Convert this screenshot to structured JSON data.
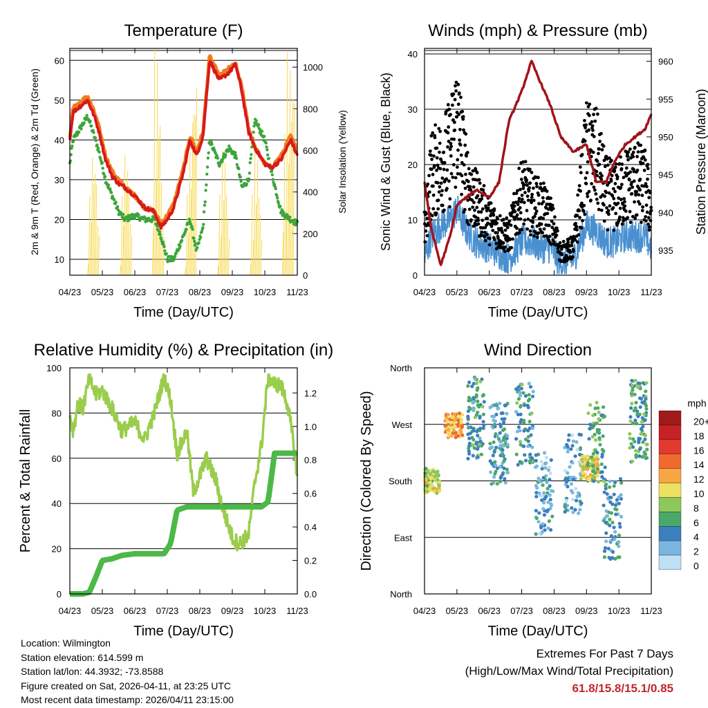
{
  "x_ticks": [
    "04/23",
    "05/23",
    "06/23",
    "07/23",
    "08/23",
    "09/23",
    "10/23",
    "11/23"
  ],
  "colors": {
    "red": "#d7191c",
    "orange": "#f07c1c",
    "green": "#3da53a",
    "yellow": "#f7d84a",
    "black": "#000000",
    "blue": "#4a90d0",
    "maroon": "#a0141a",
    "rh_green": "#9acd4c",
    "precip_green": "#4cb848"
  },
  "chart_data": [
    {
      "id": "temperature",
      "type": "line",
      "title": "Temperature (F)",
      "xlabel": "Time (Day/UTC)",
      "ylabel": "2m & 9m T (Red, Orange) & 2m Td (Green)",
      "y2label": "Solar Insolation (Yellow)",
      "ylim": [
        6,
        63
      ],
      "y2lim": [
        0,
        1090
      ],
      "y_ticks": [
        10,
        20,
        30,
        40,
        50,
        60
      ],
      "y2_ticks": [
        0,
        200,
        400,
        600,
        800,
        1000
      ],
      "x": [
        0,
        0.1,
        0.25,
        0.4,
        0.55,
        0.75,
        0.9,
        1.1,
        1.3,
        1.5,
        1.7,
        2,
        2.3,
        2.6,
        2.8,
        3,
        3.2,
        3.5,
        3.7,
        3.9,
        4.1,
        4.3,
        4.6,
        4.9,
        5.1,
        5.3,
        5.5,
        5.7,
        6,
        6.2,
        6.5,
        6.8,
        7
      ],
      "series": [
        {
          "name": "2m T",
          "values": [
            40,
            47,
            48,
            49,
            50,
            46,
            42,
            35,
            31,
            29,
            28,
            26,
            23,
            22,
            18,
            20,
            23,
            32,
            40,
            36,
            41,
            60,
            55,
            57,
            59,
            52,
            42,
            38,
            34,
            33,
            35,
            40,
            36
          ]
        },
        {
          "name": "9m T",
          "values": [
            41,
            48,
            49,
            50,
            51,
            47,
            43,
            36,
            32,
            30,
            28,
            26,
            23,
            22,
            19,
            21,
            24,
            33,
            41,
            37,
            42,
            61,
            56,
            58,
            59,
            53,
            43,
            38,
            34,
            33,
            36,
            41,
            37
          ]
        },
        {
          "name": "2m Td",
          "values": [
            34,
            40,
            42,
            44,
            46,
            41,
            37,
            30,
            26,
            22,
            20,
            21,
            20,
            20,
            16,
            10,
            10,
            16,
            20,
            12,
            18,
            40,
            34,
            38,
            36,
            28,
            30,
            45,
            40,
            32,
            22,
            20,
            19
          ]
        },
        {
          "name": "Solar Insolation",
          "values": [
            0,
            0,
            210,
            0,
            0,
            0,
            0,
            0,
            960,
            0,
            0,
            0,
            0,
            820,
            0,
            0,
            0,
            0,
            0,
            820,
            0,
            0,
            0,
            0,
            0,
            880,
            0,
            0,
            0,
            1000,
            0,
            1050,
            0
          ]
        }
      ]
    },
    {
      "id": "winds",
      "type": "scatter",
      "title": "Winds (mph) & Pressure (mb)",
      "xlabel": "Time (Day/UTC)",
      "ylabel": "Sonic Wind & Gust (Blue, Black)",
      "y2label": "Station Pressure (Maroon)",
      "ylim": [
        0,
        41
      ],
      "y2lim": [
        931.7,
        961.7
      ],
      "y_ticks": [
        0,
        10,
        20,
        30,
        40
      ],
      "y2_ticks": [
        935,
        940,
        945,
        950,
        955,
        960
      ],
      "x": [
        0,
        0.2,
        0.5,
        0.8,
        1,
        1.3,
        1.6,
        2,
        2.3,
        2.6,
        3,
        3.3,
        3.6,
        3.9,
        4.2,
        4.6,
        5,
        5.3,
        5.6,
        5.9,
        6.2,
        6.5,
        6.8,
        7
      ],
      "series": [
        {
          "name": "Gust",
          "values": [
            8,
            18,
            20,
            22,
            28,
            17,
            13,
            10,
            8,
            7,
            15,
            13,
            12,
            10,
            4,
            5,
            22,
            21,
            15,
            14,
            16,
            17,
            16,
            12
          ]
        },
        {
          "name": "Sonic Wind",
          "values": [
            3,
            7,
            9,
            10,
            12,
            8,
            6,
            5,
            4,
            3,
            6,
            6,
            5,
            5,
            2,
            3,
            9,
            8,
            6,
            6,
            7,
            7,
            7,
            5
          ]
        },
        {
          "name": "Station Pressure",
          "values": [
            944,
            938,
            933,
            937,
            941,
            942,
            943,
            942,
            944,
            952,
            956,
            960,
            957,
            954,
            950,
            948,
            949,
            944,
            944,
            947,
            949,
            950,
            951,
            953
          ]
        }
      ]
    },
    {
      "id": "humidity",
      "type": "line",
      "title": "Relative Humidity (%) & Precipitation (in)",
      "xlabel": "Time (Day/UTC)",
      "ylabel": "Percent & Total Rainfall",
      "ylim": [
        0,
        100
      ],
      "y2lim": [
        0,
        1.35
      ],
      "y_ticks": [
        0,
        20,
        40,
        60,
        80,
        100
      ],
      "y2_ticks": [
        "0.0",
        "0.2",
        "0.4",
        "0.6",
        "0.8",
        "1.0",
        "1.2"
      ],
      "x": [
        0,
        0.1,
        0.25,
        0.4,
        0.6,
        0.8,
        1,
        1.3,
        1.6,
        2,
        2.3,
        2.6,
        2.9,
        3.1,
        3.3,
        3.6,
        3.8,
        4,
        4.2,
        4.5,
        4.7,
        5,
        5.2,
        5.5,
        5.7,
        5.9,
        6.1,
        6.3,
        6.5,
        6.7,
        6.9,
        7
      ],
      "series": [
        {
          "name": "Relative Humidity",
          "values": [
            80,
            72,
            84,
            82,
            95,
            88,
            90,
            82,
            72,
            76,
            68,
            80,
            96,
            86,
            62,
            72,
            45,
            52,
            60,
            50,
            38,
            25,
            22,
            26,
            50,
            66,
            96,
            93,
            92,
            84,
            65,
            52
          ]
        },
        {
          "name": "Total Precipitation",
          "values": [
            0,
            0,
            0,
            0,
            0.01,
            0.1,
            0.2,
            0.21,
            0.23,
            0.24,
            0.24,
            0.24,
            0.24,
            0.3,
            0.5,
            0.52,
            0.52,
            0.52,
            0.52,
            0.52,
            0.52,
            0.52,
            0.52,
            0.52,
            0.52,
            0.52,
            0.55,
            0.84,
            0.84,
            0.84,
            0.84,
            0.84
          ]
        }
      ]
    },
    {
      "id": "direction",
      "type": "scatter",
      "title": "Wind Direction",
      "xlabel": "Time (Day/UTC)",
      "ylabel": "Direction (Colored By Speed)",
      "y_ticks": [
        "North",
        "East",
        "South",
        "West",
        "North"
      ],
      "y_degrees": [
        0,
        90,
        180,
        270,
        360
      ],
      "legend_title": "mph",
      "legend_labels": [
        "20+",
        "18",
        "16",
        "14",
        "12",
        "10",
        "8",
        "6",
        "4",
        "2",
        "0"
      ],
      "legend_colors": [
        "#a01a1a",
        "#c62124",
        "#e23a2c",
        "#f06a30",
        "#f8a544",
        "#ede060",
        "#8ec85a",
        "#4ca868",
        "#3c7fbd",
        "#7ab6e0",
        "#bfe0f4"
      ],
      "clusters": [
        {
          "x": 0.2,
          "dir": 180,
          "speed": 9
        },
        {
          "x": 0.9,
          "dir": 268,
          "speed": 12
        },
        {
          "x": 1.6,
          "dir": 280,
          "speed": 5
        },
        {
          "x": 2.3,
          "dir": 240,
          "speed": 4
        },
        {
          "x": 3.1,
          "dir": 270,
          "speed": 5
        },
        {
          "x": 3.7,
          "dir": 160,
          "speed": 3
        },
        {
          "x": 4.6,
          "dir": 190,
          "speed": 3
        },
        {
          "x": 5.1,
          "dir": 200,
          "speed": 10
        },
        {
          "x": 5.3,
          "dir": 240,
          "speed": 6
        },
        {
          "x": 5.8,
          "dir": 120,
          "speed": 4
        },
        {
          "x": 6.6,
          "dir": 275,
          "speed": 6
        }
      ]
    }
  ],
  "info": {
    "location": "Location: Wilmington",
    "elevation": "Station elevation: 614.599 m",
    "latlon": "Station lat/lon: 44.3932; -73.8588",
    "created": "Figure created on Sat, 2026-04-11, at 23:25 UTC",
    "latest": "Most recent data timestamp: 2026/04/11 23:15:00"
  },
  "extremes": {
    "title": "Extremes For Past 7 Days",
    "subtitle": "(High/Low/Max Wind/Total Precipitation)",
    "values": "61.8/15.8/15.1/0.85"
  }
}
